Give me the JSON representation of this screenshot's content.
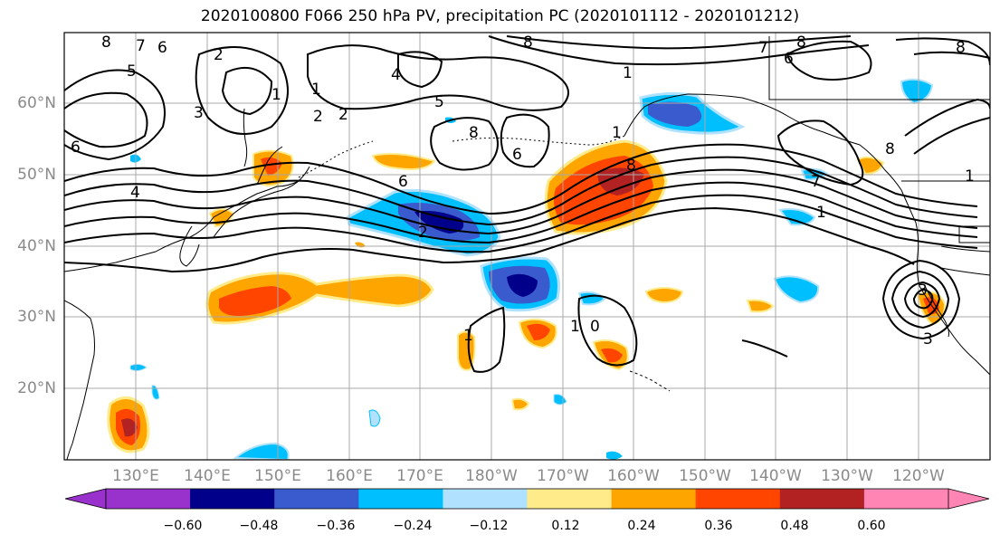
{
  "title": "2020100800 F066 250 hPa PV, precipitation PC (2020101112 - 2020101212)",
  "lat_labels": [
    "60°N",
    "50°N",
    "40°N",
    "30°N",
    "20°N"
  ],
  "lon_labels": [
    "130°E",
    "140°E",
    "150°E",
    "160°E",
    "170°E",
    "180°W",
    "170°W",
    "160°W",
    "150°W",
    "140°W",
    "130°W",
    "120°W"
  ],
  "colorbar": {
    "labels": [
      "−0.60",
      "−0.48",
      "−0.36",
      "−0.24",
      "−0.12",
      "0.12",
      "0.24",
      "0.36",
      "0.48",
      "0.60"
    ],
    "colors": [
      "#9932cc",
      "#00008b",
      "#3a5bcd",
      "#00bfff",
      "#b0e2ff",
      "#ffffff",
      "#ffeb8a",
      "#ffa500",
      "#ff4500",
      "#b22222",
      "#ff85b5"
    ]
  },
  "contour_labels": [
    "8",
    "7",
    "6",
    "5",
    "6",
    "4",
    "2",
    "1",
    "3",
    "1",
    "2",
    "2",
    "4",
    "5",
    "8",
    "6",
    "8",
    "7",
    "6",
    "8",
    "8",
    "1",
    "1",
    "8",
    "6",
    "2",
    "1",
    "0",
    "1",
    "7",
    "1",
    "3",
    "3"
  ]
}
